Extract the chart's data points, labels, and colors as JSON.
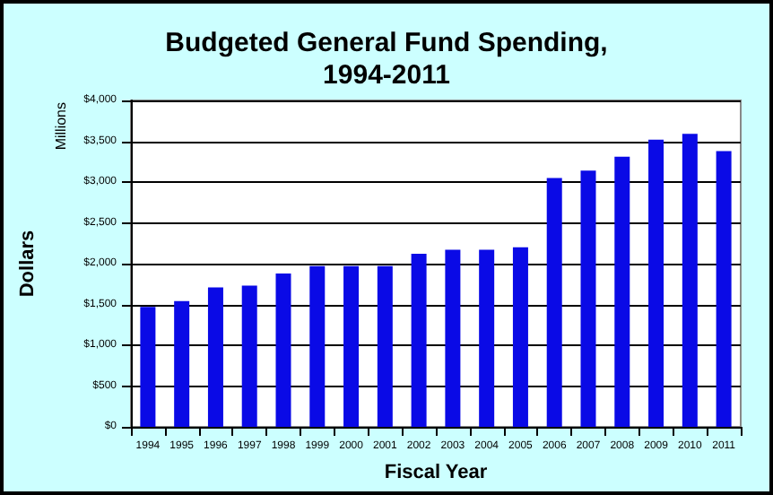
{
  "chart_data": {
    "type": "bar",
    "title": "Budgeted General Fund Spending,\n1994-2011",
    "xlabel": "Fiscal Year",
    "ylabel": "Dollars",
    "annotations": [
      "Millions"
    ],
    "categories": [
      "1994",
      "1995",
      "1996",
      "1997",
      "1998",
      "1999",
      "2000",
      "2001",
      "2002",
      "2003",
      "2004",
      "2005",
      "2006",
      "2007",
      "2008",
      "2009",
      "2010",
      "2011"
    ],
    "values": [
      1470,
      1540,
      1710,
      1730,
      1880,
      1970,
      1970,
      1970,
      2120,
      2170,
      2170,
      2200,
      3050,
      3140,
      3310,
      3520,
      3590,
      3380
    ],
    "color": "#0a0ae6",
    "ylim": [
      0,
      4000
    ],
    "yticks": [
      {
        "value": 0,
        "label": "$0"
      },
      {
        "value": 500,
        "label": "$500"
      },
      {
        "value": 1000,
        "label": "$1,000"
      },
      {
        "value": 1500,
        "label": "$1,500"
      },
      {
        "value": 2000,
        "label": "$2,000"
      },
      {
        "value": 2500,
        "label": "$2,500"
      },
      {
        "value": 3000,
        "label": "$3,000"
      },
      {
        "value": 3500,
        "label": "$3,500"
      },
      {
        "value": 4000,
        "label": "$4,000"
      }
    ],
    "grid": "y"
  }
}
